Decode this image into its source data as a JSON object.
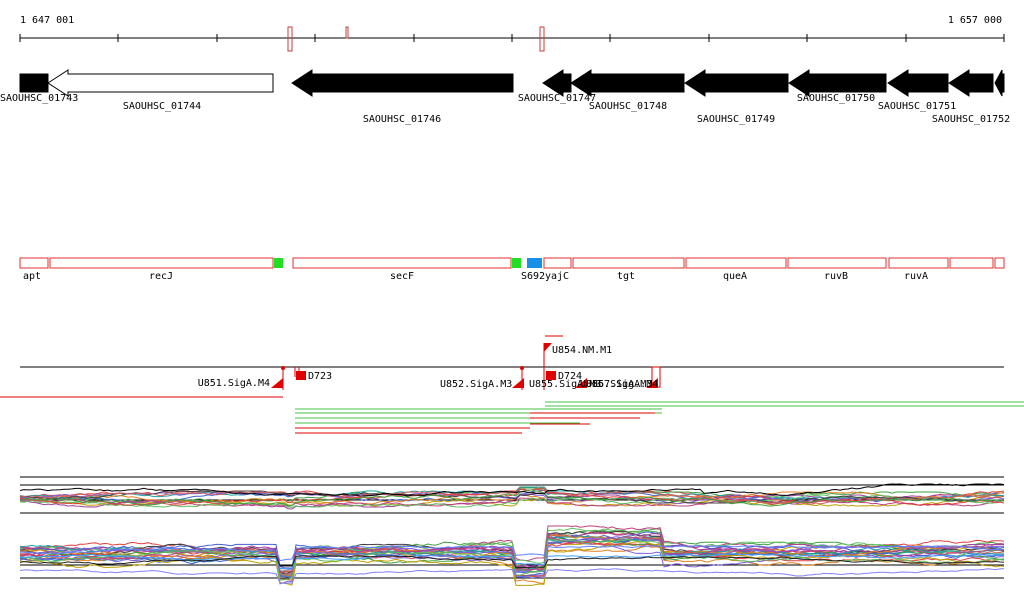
{
  "ruler": {
    "start_label": "1 647 001",
    "end_label": "1 657 000"
  },
  "genes": [
    {
      "id": "SAOUHSC_01743",
      "filled": true
    },
    {
      "id": "SAOUHSC_01744",
      "filled": false
    },
    {
      "id": "SAOUHSC_01746",
      "filled": true
    },
    {
      "id": "SAOUHSC_01747",
      "filled": true
    },
    {
      "id": "SAOUHSC_01748",
      "filled": true
    },
    {
      "id": "SAOUHSC_01749",
      "filled": true
    },
    {
      "id": "SAOUHSC_01750",
      "filled": true
    },
    {
      "id": "SAOUHSC_01751",
      "filled": true
    },
    {
      "id": "SAOUHSC_01752",
      "filled": true
    }
  ],
  "operons": [
    "apt",
    "recJ",
    "secF",
    "S692",
    "yajC",
    "tgt",
    "queA",
    "ruvB",
    "ruvA"
  ],
  "features": {
    "labels": [
      "U851.SigA.M4",
      "D723",
      "U854.NM.M1",
      "D724",
      "U852.SigA.M3",
      "U855.SigA.M3",
      "U856.SigA.M3",
      "U857.SigA.M4"
    ]
  },
  "colors": {
    "gene_fill": "#000000",
    "operon_outline": "#e03030",
    "feature_red": "#e00000",
    "terminator_green": "#22dd22",
    "marker_blue": "#1890e8",
    "segment_green": "#40c040"
  }
}
